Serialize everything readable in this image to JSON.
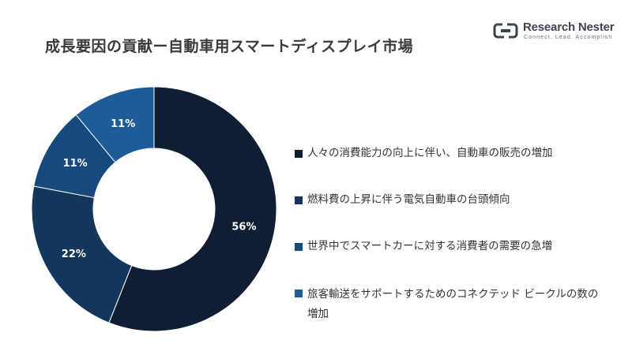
{
  "title": "成長要因の貢献ー自動車用スマートディスプレイ市場",
  "logo": {
    "name": "Research Nester",
    "tagline": "Connect. Lead. Accomplish",
    "icon": "research-nester-logo-icon"
  },
  "colors": {
    "title": "#3a3a3a",
    "segment_1": "#0f1e33",
    "segment_2": "#13365c",
    "segment_3": "#174a7c",
    "segment_4": "#1d5c99"
  },
  "chart_data": {
    "type": "pie",
    "donut": true,
    "categories": [
      "人々の消費能力の向上に伴い、自動車の販売の増加",
      "燃料費の上昇に伴う電気自動車の台頭傾向",
      "世界中でスマートカーに対する消費者の需要の急増",
      "旅客輸送をサポートするためのコネクテッド ビークルの数の増加"
    ],
    "values": [
      56,
      22,
      11,
      11
    ],
    "value_labels": [
      "56%",
      "22%",
      "11%",
      "11%"
    ],
    "colors": [
      "#0f1e33",
      "#13365c",
      "#174a7c",
      "#1d5c99"
    ],
    "legend_position": "right"
  }
}
